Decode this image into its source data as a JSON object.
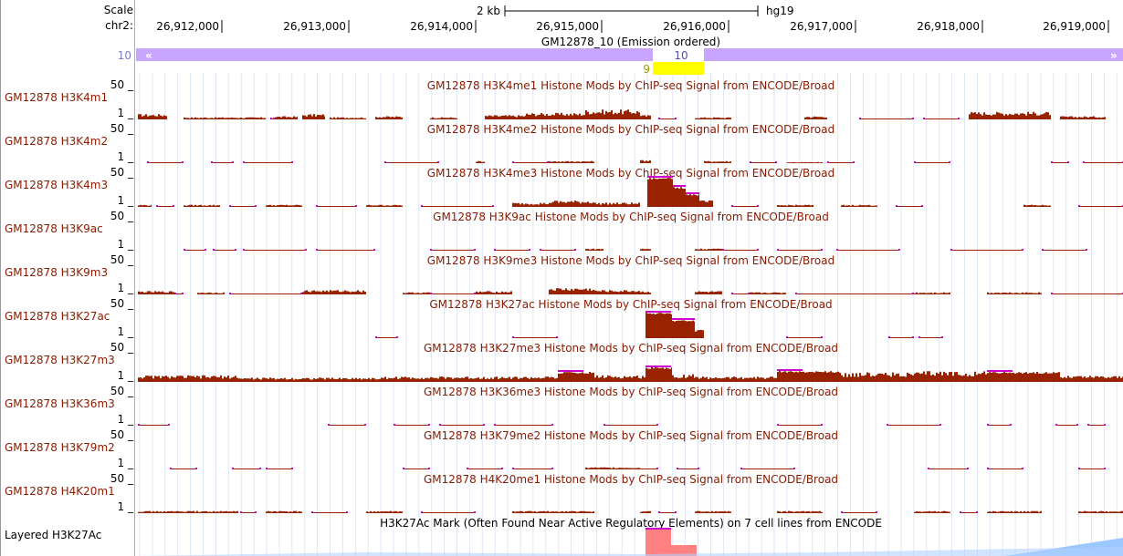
{
  "ruler": {
    "scale_label": "Scale",
    "chrom_label": "chr2:",
    "scalebar_label": "2 kb",
    "assembly": "hg19",
    "positions": [
      "26,912,000",
      "26,913,000",
      "26,914,000",
      "26,915,000",
      "26,916,000",
      "26,917,000",
      "26,918,000",
      "26,919,000"
    ]
  },
  "segmentation": {
    "title": "GM12878_10 (Emission ordered)",
    "state_left": "10",
    "state_mid": "9",
    "state_right": "10",
    "bar_color": "#c8a6ff",
    "highlight_color": "#ffff00"
  },
  "tracks": [
    {
      "label": "GM12878 H3K4m1",
      "title": "GM12878 H3K4me1 Histone Mods by ChIP-seq Signal from ENCODE/Broad",
      "max": "50",
      "min": "1"
    },
    {
      "label": "GM12878 H3K4m2",
      "title": "GM12878 H3K4me2 Histone Mods by ChIP-seq Signal from ENCODE/Broad",
      "max": "50",
      "min": "1"
    },
    {
      "label": "GM12878 H3K4m3",
      "title": "GM12878 H3K4me3 Histone Mods by ChIP-seq Signal from ENCODE/Broad",
      "max": "50",
      "min": "1"
    },
    {
      "label": "GM12878 H3K9ac",
      "title": "GM12878 H3K9ac Histone Mods by ChIP-seq Signal from ENCODE/Broad",
      "max": "50",
      "min": "1"
    },
    {
      "label": "GM12878 H3K9m3",
      "title": "GM12878 H3K9me3 Histone Mods by ChIP-seq Signal from ENCODE/Broad",
      "max": "50",
      "min": "1"
    },
    {
      "label": "GM12878 H3K27ac",
      "title": "GM12878 H3K27ac Histone Mods by ChIP-seq Signal from ENCODE/Broad",
      "max": "50",
      "min": "1"
    },
    {
      "label": "GM12878 H3K27m3",
      "title": "GM12878 H3K27me3 Histone Mods by ChIP-seq Signal from ENCODE/Broad",
      "max": "50",
      "min": "1"
    },
    {
      "label": "GM12878 H3K36m3",
      "title": "GM12878 H3K36me3 Histone Mods by ChIP-seq Signal from ENCODE/Broad",
      "max": "50",
      "min": "1"
    },
    {
      "label": "GM12878 H3K79m2",
      "title": "GM12878 H3K79me2 Histone Mods by ChIP-seq Signal from ENCODE/Broad",
      "max": "50",
      "min": "1"
    },
    {
      "label": "GM12878 H4K20m1",
      "title": "GM12878 H4K20me1 Histone Mods by ChIP-seq Signal from ENCODE/Broad",
      "max": "50",
      "min": "1"
    }
  ],
  "layered": {
    "label": "Layered H3K27Ac",
    "title": "H3K27Ac Mark (Often Found Near Active Regulatory Elements) on 7 cell lines from ENCODE"
  },
  "colors": {
    "signal": "#992200",
    "label_text": "#8b1a00",
    "zero_marker": "#cc00cc",
    "layered": "#ff8080"
  }
}
